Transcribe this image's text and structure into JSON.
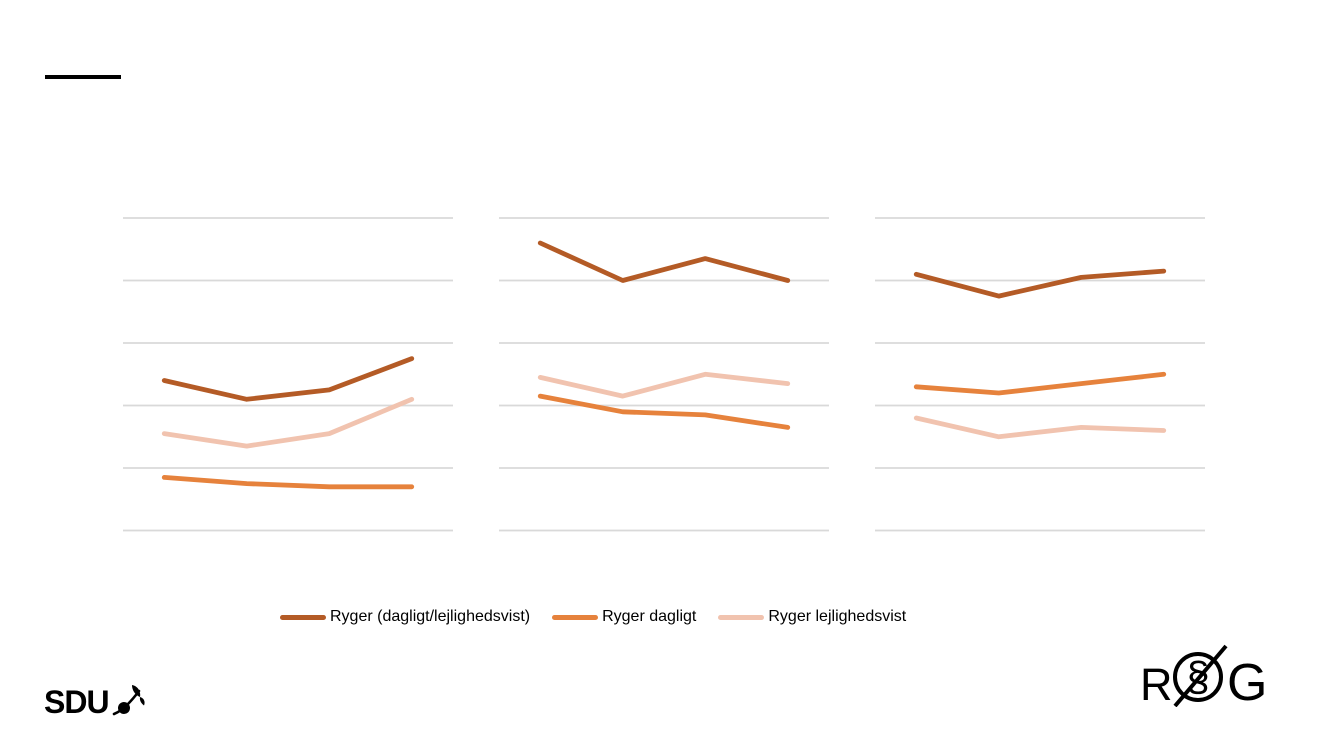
{
  "colors": {
    "background": "#ffffff",
    "gridline": "#d9d9d9",
    "title_dash": "#000000",
    "series_total": "#b45b26",
    "series_daily": "#e6823c",
    "series_occasional": "#f1c3af"
  },
  "legend": {
    "items": [
      {
        "label": "Ryger (dagligt/lejlighedsvist)",
        "color": "#b45b26"
      },
      {
        "label": "Ryger dagligt",
        "color": "#e6823c"
      },
      {
        "label": "Ryger lejlighedsvist",
        "color": "#f1c3af"
      }
    ]
  },
  "chart_data": [
    {
      "type": "line",
      "title": "",
      "position": "left",
      "x": [
        1,
        2,
        3,
        4
      ],
      "x_tick_labels_visible": false,
      "y_tick_labels_visible": false,
      "ylim": [
        0,
        50
      ],
      "gridline_values": [
        0,
        10,
        20,
        30,
        40,
        50
      ],
      "grid": true,
      "series": [
        {
          "name": "Ryger (dagligt/lejlighedsvist)",
          "color": "#b45b26",
          "values": [
            24,
            21,
            22.5,
            27.5
          ]
        },
        {
          "name": "Ryger dagligt",
          "color": "#e6823c",
          "values": [
            8.5,
            7.5,
            7,
            7
          ]
        },
        {
          "name": "Ryger lejlighedsvist",
          "color": "#f1c3af",
          "values": [
            15.5,
            13.5,
            15.5,
            21
          ]
        }
      ]
    },
    {
      "type": "line",
      "title": "",
      "position": "middle",
      "x": [
        1,
        2,
        3,
        4
      ],
      "x_tick_labels_visible": false,
      "y_tick_labels_visible": false,
      "ylim": [
        0,
        50
      ],
      "gridline_values": [
        0,
        10,
        20,
        30,
        40,
        50
      ],
      "grid": true,
      "series": [
        {
          "name": "Ryger (dagligt/lejlighedsvist)",
          "color": "#b45b26",
          "values": [
            46,
            40,
            43.5,
            40
          ]
        },
        {
          "name": "Ryger dagligt",
          "color": "#e6823c",
          "values": [
            21.5,
            19,
            18.5,
            16.5
          ]
        },
        {
          "name": "Ryger lejlighedsvist",
          "color": "#f1c3af",
          "values": [
            24.5,
            21.5,
            25,
            23.5
          ]
        }
      ]
    },
    {
      "type": "line",
      "title": "",
      "position": "right",
      "x": [
        1,
        2,
        3,
        4
      ],
      "x_tick_labels_visible": false,
      "y_tick_labels_visible": false,
      "ylim": [
        0,
        50
      ],
      "gridline_values": [
        0,
        10,
        20,
        30,
        40,
        50
      ],
      "grid": true,
      "series": [
        {
          "name": "Ryger (dagligt/lejlighedsvist)",
          "color": "#b45b26",
          "values": [
            41,
            37.5,
            40.5,
            41.5
          ]
        },
        {
          "name": "Ryger dagligt",
          "color": "#e6823c",
          "values": [
            23,
            22,
            23.5,
            25
          ]
        },
        {
          "name": "Ryger lejlighedsvist",
          "color": "#f1c3af",
          "values": [
            18,
            15,
            16.5,
            16
          ]
        }
      ]
    }
  ],
  "footer": {
    "sdu_text": "SDU",
    "rog_logo": {
      "r": "R",
      "section_sign": "§",
      "g": "G"
    }
  }
}
